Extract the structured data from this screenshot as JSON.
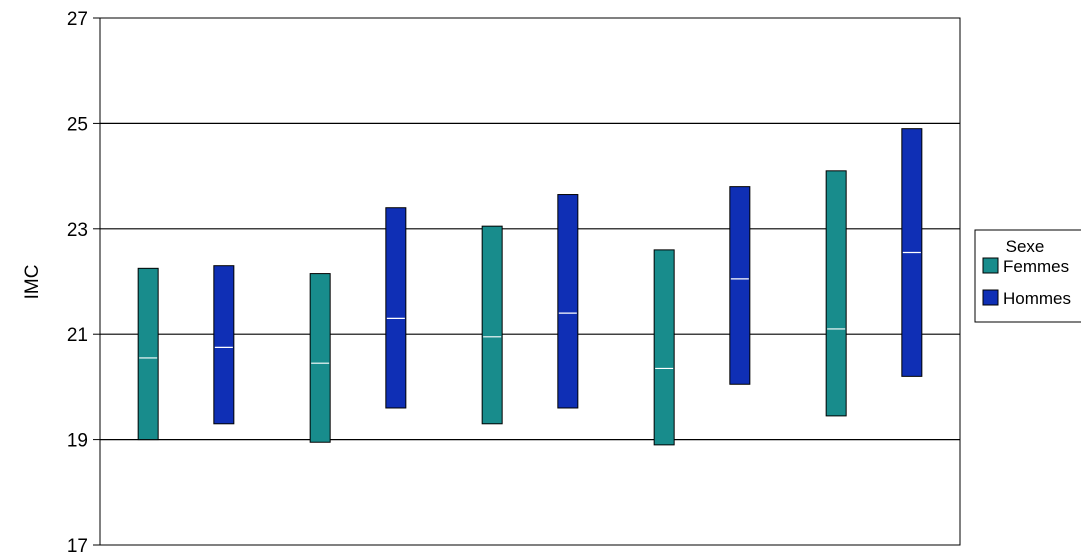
{
  "chart_data": {
    "type": "box",
    "title": "",
    "xlabel": "",
    "ylabel": "IMC",
    "ylim": [
      17,
      27
    ],
    "yticks": [
      17,
      19,
      21,
      23,
      25,
      27
    ],
    "grid": "horizontal",
    "legend": {
      "title": "Sexe",
      "placement": "right"
    },
    "categories": [
      "",
      "",
      "",
      "",
      ""
    ],
    "series": [
      {
        "name": "Femmes",
        "color": "#188c8c",
        "low": [
          19.0,
          18.95,
          19.3,
          18.9,
          19.45
        ],
        "median": [
          20.55,
          20.45,
          20.95,
          20.35,
          21.1
        ],
        "high": [
          22.25,
          22.15,
          23.05,
          22.6,
          24.1
        ]
      },
      {
        "name": "Hommes",
        "color": "#0f2fb5",
        "low": [
          19.3,
          19.6,
          19.6,
          20.05,
          20.2
        ],
        "median": [
          20.75,
          21.3,
          21.4,
          22.05,
          22.55
        ],
        "high": [
          22.3,
          23.4,
          23.65,
          23.8,
          24.9
        ]
      }
    ]
  }
}
